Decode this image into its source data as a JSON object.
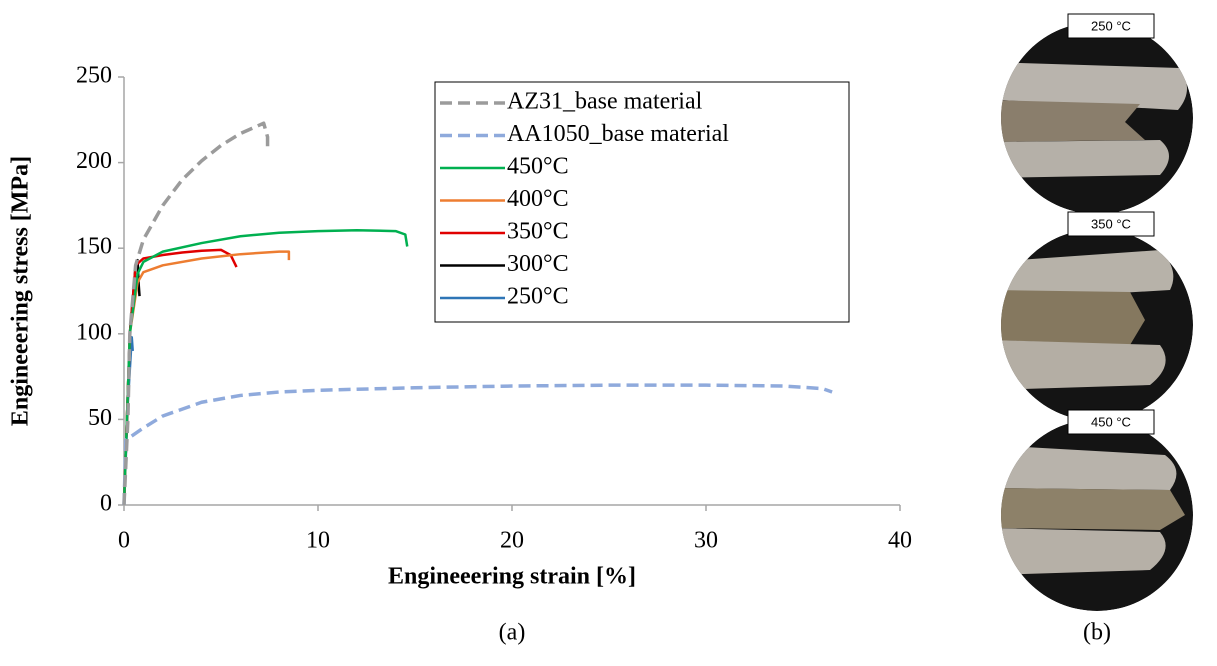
{
  "chart_data": {
    "type": "line",
    "xlabel": "Engineeering strain [%]",
    "ylabel": "Engineeering stress [MPa]",
    "xlim": [
      0,
      40
    ],
    "xticks": [
      0,
      10,
      20,
      30,
      40
    ],
    "ylim": [
      0,
      250
    ],
    "yticks": [
      0,
      50,
      100,
      150,
      200,
      250
    ],
    "series": [
      {
        "name": "AZ31_base material",
        "color": "#9b9b9b",
        "dashed": true,
        "x": [
          0,
          0.2,
          0.3,
          0.6,
          1,
          2,
          3,
          4,
          5,
          6,
          7,
          7.2,
          7.4,
          7.4
        ],
        "values": [
          0,
          50,
          100,
          140,
          155,
          175,
          190,
          201,
          210,
          217,
          222,
          223,
          215,
          208
        ]
      },
      {
        "name": "AA1050_base material",
        "color": "#8faadc",
        "dashed": true,
        "x": [
          0,
          0.1,
          1,
          2,
          4,
          6,
          8,
          10,
          15,
          20,
          25,
          30,
          34,
          36,
          36.5
        ],
        "values": [
          0,
          38,
          45,
          52,
          60,
          64,
          66,
          67,
          68.5,
          69.5,
          70,
          70,
          69.5,
          68,
          66
        ]
      },
      {
        "name": "450°C",
        "color": "#00b050",
        "dashed": false,
        "x": [
          0,
          0.3,
          0.7,
          1,
          2,
          4,
          6,
          8,
          10,
          12,
          14,
          14.5,
          14.6
        ],
        "values": [
          0,
          100,
          135,
          142,
          148,
          153,
          157,
          159,
          160,
          160.5,
          160,
          158,
          151
        ]
      },
      {
        "name": "400°C",
        "color": "#ed7d31",
        "dashed": false,
        "x": [
          0,
          0.3,
          0.7,
          1,
          2,
          4,
          6,
          8,
          8.5,
          8.5
        ],
        "values": [
          0,
          100,
          130,
          136,
          140,
          144,
          146.5,
          148,
          148,
          143
        ]
      },
      {
        "name": "350°C",
        "color": "#e00000",
        "dashed": false,
        "x": [
          0,
          0.3,
          0.6,
          1,
          2,
          3,
          4,
          5,
          5.5,
          5.8
        ],
        "values": [
          0,
          100,
          140,
          144,
          146,
          147.5,
          148.5,
          149,
          146,
          139
        ]
      },
      {
        "name": "300°C",
        "color": "#000000",
        "dashed": false,
        "x": [
          0,
          0.3,
          0.6,
          0.7,
          0.75,
          0.8
        ],
        "values": [
          0,
          100,
          140,
          143,
          130,
          122
        ]
      },
      {
        "name": "250°C",
        "color": "#2e75b6",
        "dashed": false,
        "x": [
          0,
          0.2,
          0.4,
          0.45
        ],
        "values": [
          0,
          60,
          98,
          90
        ]
      }
    ]
  },
  "photo_labels": [
    "250 °C",
    "350 °C",
    "450 °C"
  ],
  "panel_labels": [
    "(a)",
    "(b)"
  ]
}
